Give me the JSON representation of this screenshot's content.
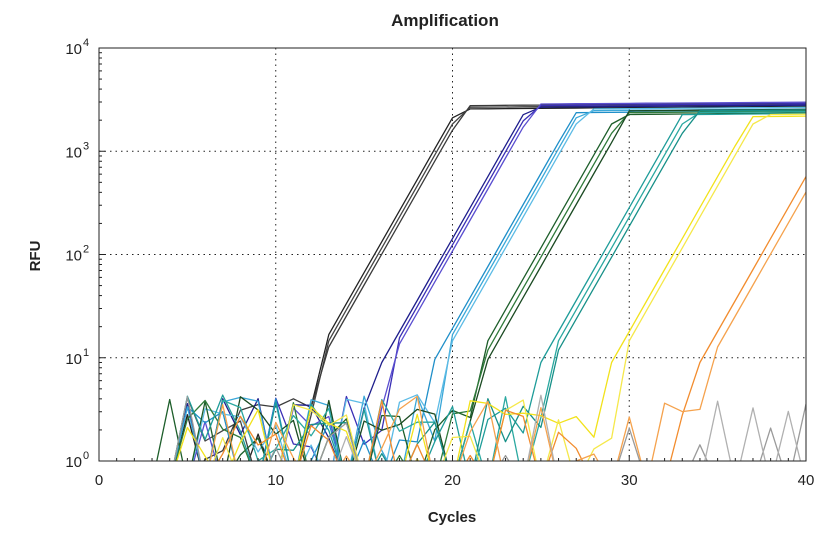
{
  "chart_data": {
    "type": "line",
    "title": "Amplification",
    "xlabel": "Cycles",
    "ylabel": "RFU",
    "xlim": [
      0,
      40
    ],
    "ylim": [
      1,
      10000
    ],
    "yscale": "log",
    "grid": "dotted",
    "legend": "none",
    "x_ticks": [
      {
        "value": 0,
        "label": "0"
      },
      {
        "value": 10,
        "label": "10"
      },
      {
        "value": 20,
        "label": "20"
      },
      {
        "value": 30,
        "label": "30"
      },
      {
        "value": 40,
        "label": "40"
      }
    ],
    "y_ticks": [
      {
        "value": 1,
        "base": "10",
        "exp": "0"
      },
      {
        "value": 10,
        "base": "10",
        "exp": "1"
      },
      {
        "value": 100,
        "base": "10",
        "exp": "2"
      },
      {
        "value": 1000,
        "base": "10",
        "exp": "3"
      },
      {
        "value": 10000,
        "base": "10",
        "exp": "4"
      }
    ],
    "series": [
      {
        "color": "#222222",
        "ct": 12.1,
        "plateau": 2500,
        "noise_from": 3.8
      },
      {
        "color": "#444444",
        "ct": 12.3,
        "plateau": 2600,
        "noise_from": 4.5
      },
      {
        "color": "#3b3b3b",
        "ct": 12.5,
        "plateau": 2700,
        "noise_from": 5.2
      },
      {
        "color": "#1e1e8c",
        "ct": 16.0,
        "plateau": 2600,
        "noise_from": 4.1
      },
      {
        "color": "#3a2fb5",
        "ct": 16.2,
        "plateau": 2700,
        "noise_from": 4.7
      },
      {
        "color": "#5a4ed0",
        "ct": 16.4,
        "plateau": 2800,
        "noise_from": 5.5
      },
      {
        "color": "#1f8fc9",
        "ct": 18.9,
        "plateau": 2300,
        "noise_from": 4.3
      },
      {
        "color": "#3aa7d8",
        "ct": 19.1,
        "plateau": 2400,
        "noise_from": 5.0
      },
      {
        "color": "#5cbbe5",
        "ct": 19.3,
        "plateau": 2500,
        "noise_from": 5.8
      },
      {
        "color": "#1d5e2a",
        "ct": 21.3,
        "plateau": 2200,
        "noise_from": 4.0
      },
      {
        "color": "#2f7a3a",
        "ct": 21.6,
        "plateau": 2300,
        "noise_from": 4.8
      },
      {
        "color": "#1a4a22",
        "ct": 21.9,
        "plateau": 2400,
        "noise_from": 6.0
      },
      {
        "color": "#1e9c99",
        "ct": 25.0,
        "plateau": 2200,
        "noise_from": 4.6
      },
      {
        "color": "#2aa8a0",
        "ct": 25.3,
        "plateau": 2300,
        "noise_from": 5.4
      },
      {
        "color": "#179088",
        "ct": 25.6,
        "plateau": 2400,
        "noise_from": 6.3
      },
      {
        "color": "#f2e21b",
        "ct": 29.0,
        "plateau": 2100,
        "noise_from": 5.0
      },
      {
        "color": "#f5e84a",
        "ct": 29.3,
        "plateau": 2200,
        "noise_from": 6.1
      },
      {
        "color": "#f28c2e",
        "ct": 34.0,
        "plateau": 1800,
        "noise_from": 5.7
      },
      {
        "color": "#f5a24d",
        "ct": 34.5,
        "plateau": 1700,
        "noise_from": 6.6
      },
      {
        "color": "#9a9a9a",
        "ct": 999,
        "plateau": 0,
        "noise_from": 3.4
      },
      {
        "color": "#b0b0b0",
        "ct": 999,
        "plateau": 0,
        "noise_from": 6.2
      }
    ]
  }
}
